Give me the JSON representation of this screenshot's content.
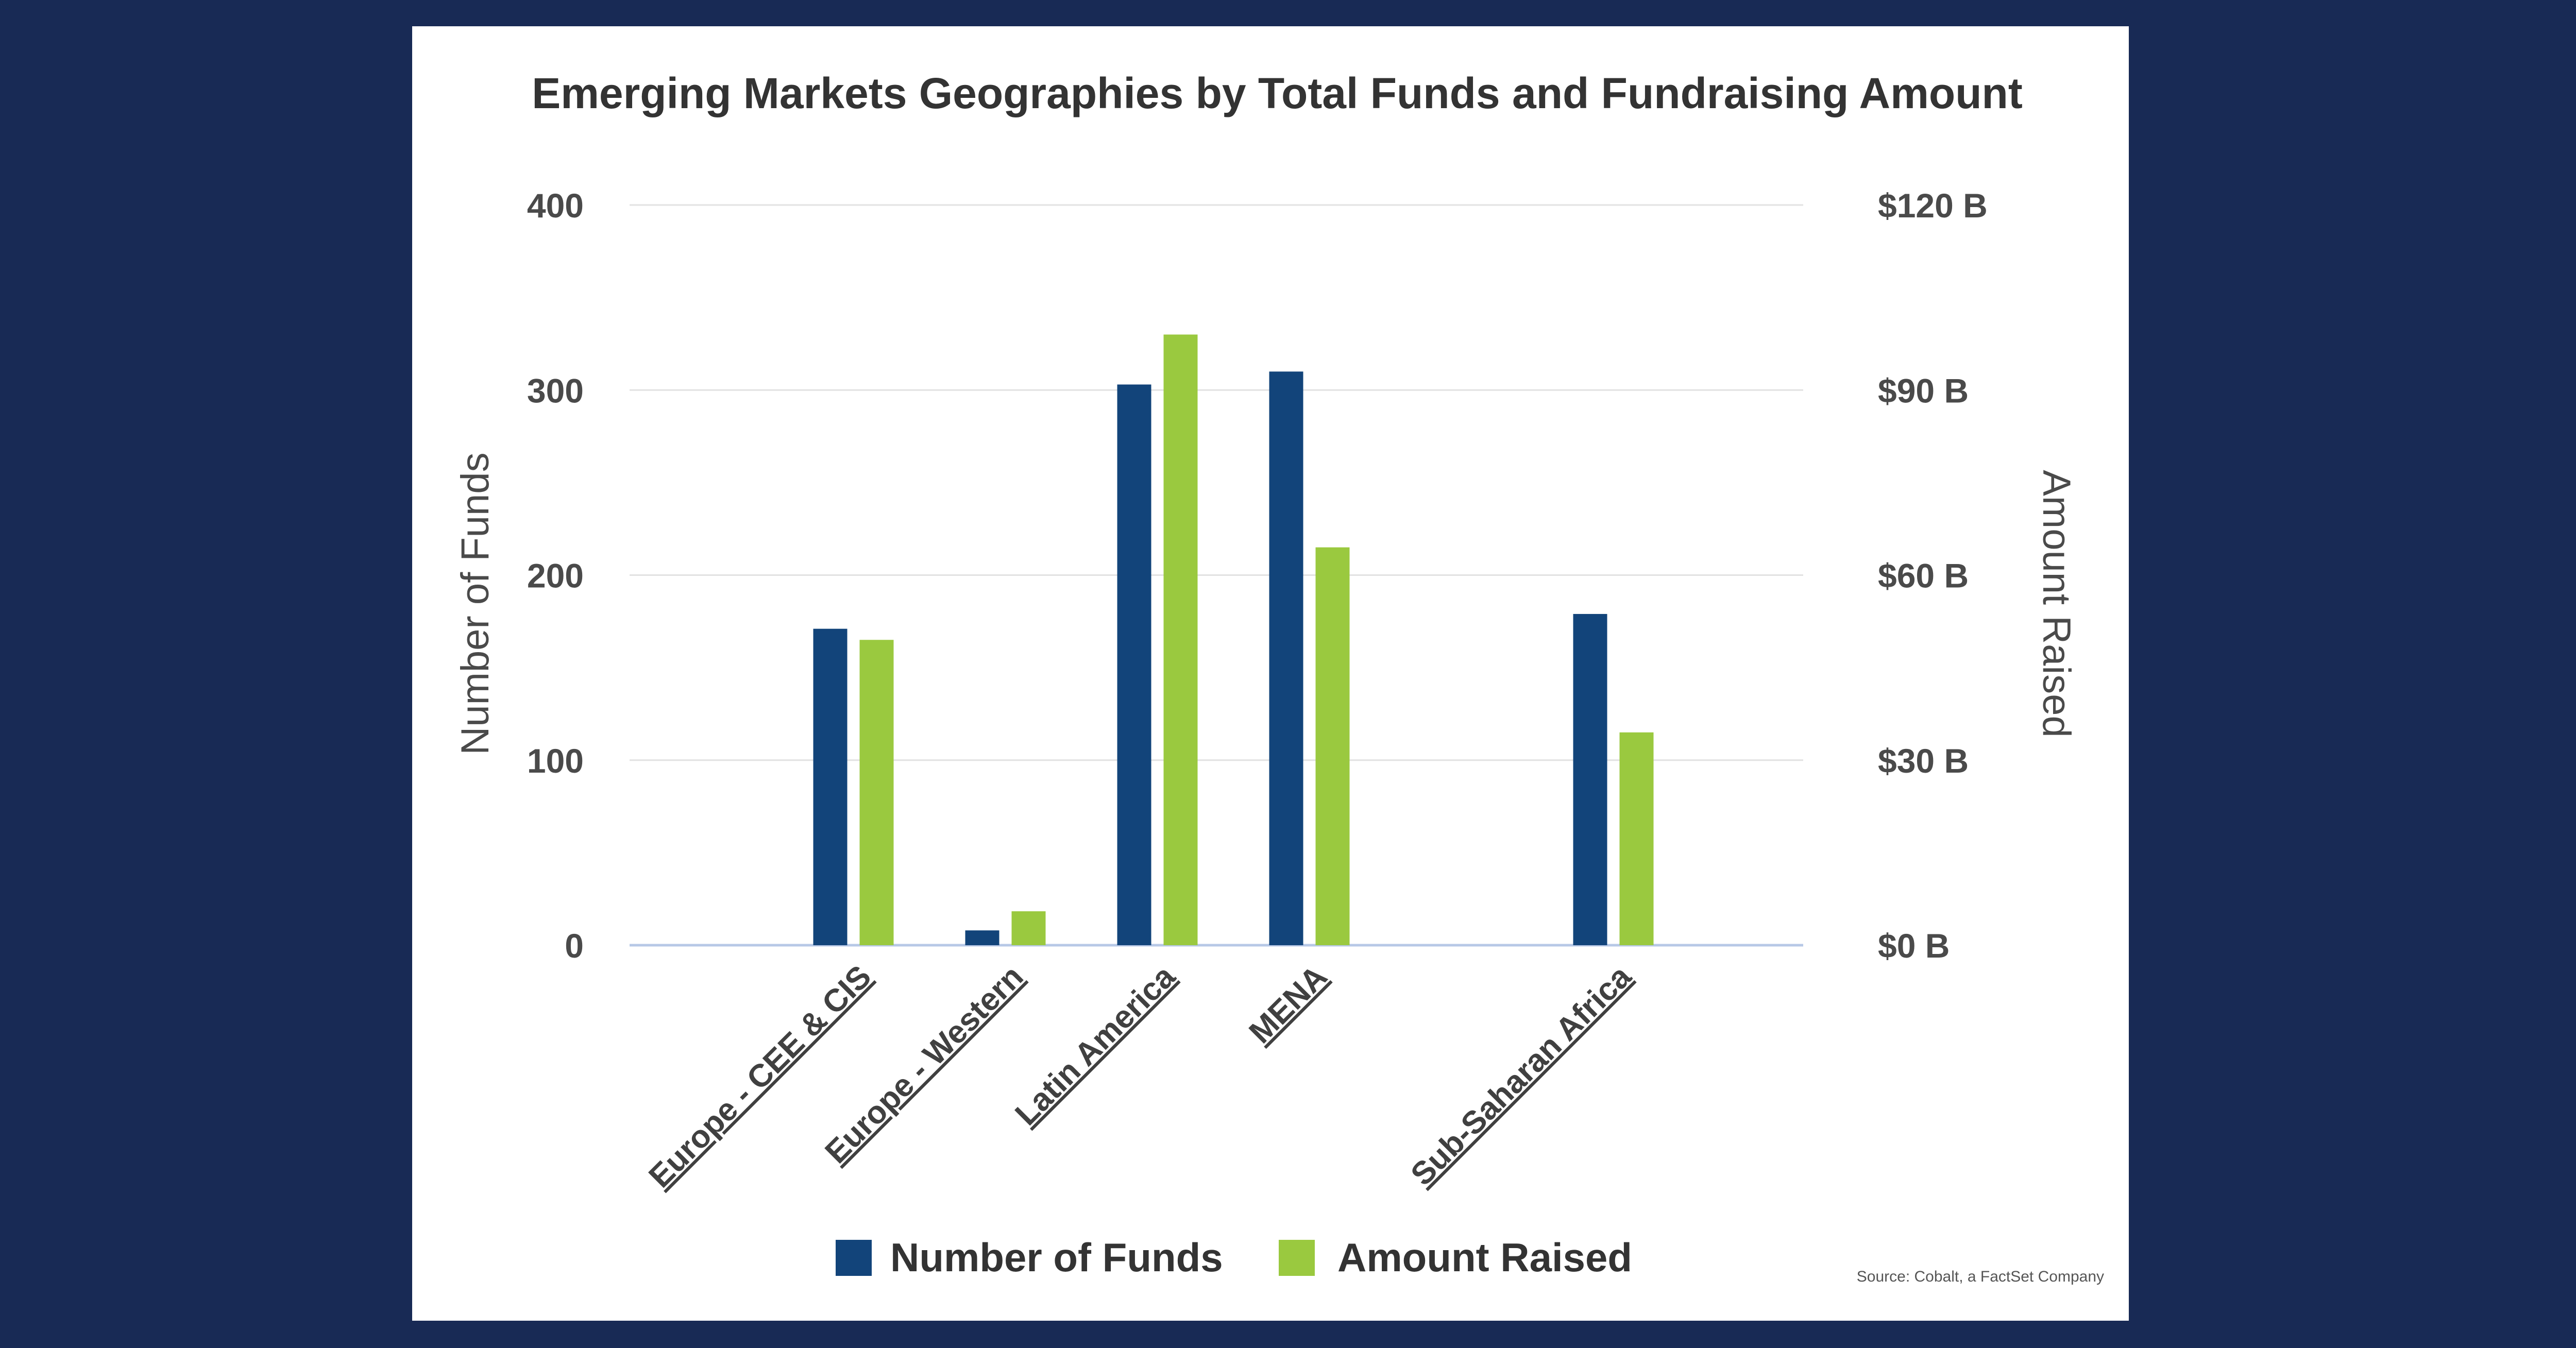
{
  "chart_data": {
    "type": "bar",
    "title": "Emerging Markets Geographies by Total Funds and Fundraising Amount",
    "categories": [
      "",
      "Europe - CEE & CIS",
      "Europe - Western",
      "Latin America",
      "MENA",
      "",
      "Sub-Saharan Africa"
    ],
    "series": [
      {
        "name": "Number of Funds",
        "axis": "left",
        "color": "#12447a",
        "values": [
          null,
          171,
          8,
          303,
          310,
          null,
          179
        ]
      },
      {
        "name": "Amount Raised",
        "axis": "right",
        "color": "#9ac93f",
        "values": [
          null,
          49.5,
          5.5,
          99,
          64.5,
          null,
          34.5
        ]
      }
    ],
    "ylabel_left": "Number of Funds",
    "ylabel_right": "Amount Raised",
    "ylim_left": [
      0,
      400
    ],
    "ylim_right": [
      0,
      120
    ],
    "yticks_left": [
      "0",
      "100",
      "200",
      "300",
      "400"
    ],
    "yticks_right": [
      "$0 B",
      "$30 B",
      "$60 B",
      "$90 B",
      "$120 B"
    ],
    "grid": true,
    "legend_position": "bottom-center",
    "source": "Source: Cobalt, a FactSet Company"
  }
}
